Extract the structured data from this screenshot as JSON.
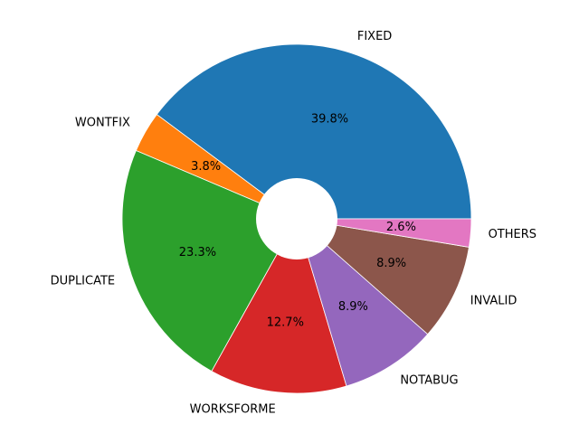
{
  "chart_data": {
    "type": "pie",
    "variant": "donut",
    "start_angle_deg": 0,
    "direction": "counterclockwise",
    "slices": [
      {
        "label": "FIXED",
        "value": 39.8,
        "pct_label": "39.8%",
        "color": "#1f77b4"
      },
      {
        "label": "WONTFIX",
        "value": 3.8,
        "pct_label": "3.8%",
        "color": "#ff7f0e"
      },
      {
        "label": "DUPLICATE",
        "value": 23.3,
        "pct_label": "23.3%",
        "color": "#2ca02c"
      },
      {
        "label": "WORKSFORME",
        "value": 12.7,
        "pct_label": "12.7%",
        "color": "#d62728"
      },
      {
        "label": "NOTABUG",
        "value": 8.9,
        "pct_label": "8.9%",
        "color": "#9467bd"
      },
      {
        "label": "INVALID",
        "value": 8.9,
        "pct_label": "8.9%",
        "color": "#8c564b"
      },
      {
        "label": "OTHERS",
        "value": 2.6,
        "pct_label": "2.6%",
        "color": "#e377c2"
      }
    ]
  }
}
